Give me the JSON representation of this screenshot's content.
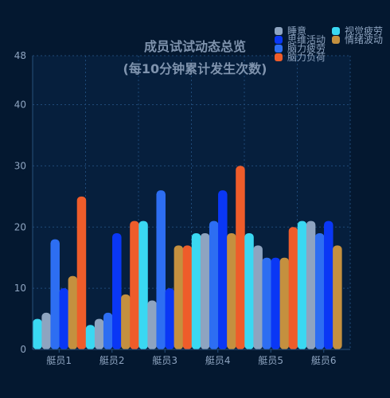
{
  "chart_data": {
    "type": "bar",
    "title": "成员试试动态总览",
    "subtitle": "(每10分钟累计发生次数)",
    "categories": [
      "艇员1",
      "艇员2",
      "艇员3",
      "艇员4",
      "艇员5",
      "艇员6"
    ],
    "ylim": [
      0,
      48
    ],
    "yticks": [
      0,
      10,
      20,
      30,
      40,
      48
    ],
    "grid": true,
    "legend_position": "top-right",
    "series": [
      {
        "name": "视觉疲劳",
        "color": "#3ad8f2",
        "values": [
          5,
          4,
          21,
          19,
          19,
          21
        ]
      },
      {
        "name": "睡意",
        "color": "#8ea4c0",
        "values": [
          6,
          5,
          8,
          19,
          17,
          21
        ]
      },
      {
        "name": "脑力疲劳",
        "color": "#2d6ef2",
        "values": [
          18,
          6,
          26,
          21,
          15,
          19
        ]
      },
      {
        "name": "思维活动",
        "color": "#0a37f5",
        "values": [
          10,
          19,
          10,
          26,
          15,
          21
        ]
      },
      {
        "name": "情绪波动",
        "color": "#c4903f",
        "values": [
          12,
          9,
          17,
          19,
          15,
          17
        ]
      },
      {
        "name": "脑力负荷",
        "color": "#ee5c2a",
        "values": [
          25,
          21,
          17,
          30,
          20,
          0
        ]
      }
    ]
  }
}
